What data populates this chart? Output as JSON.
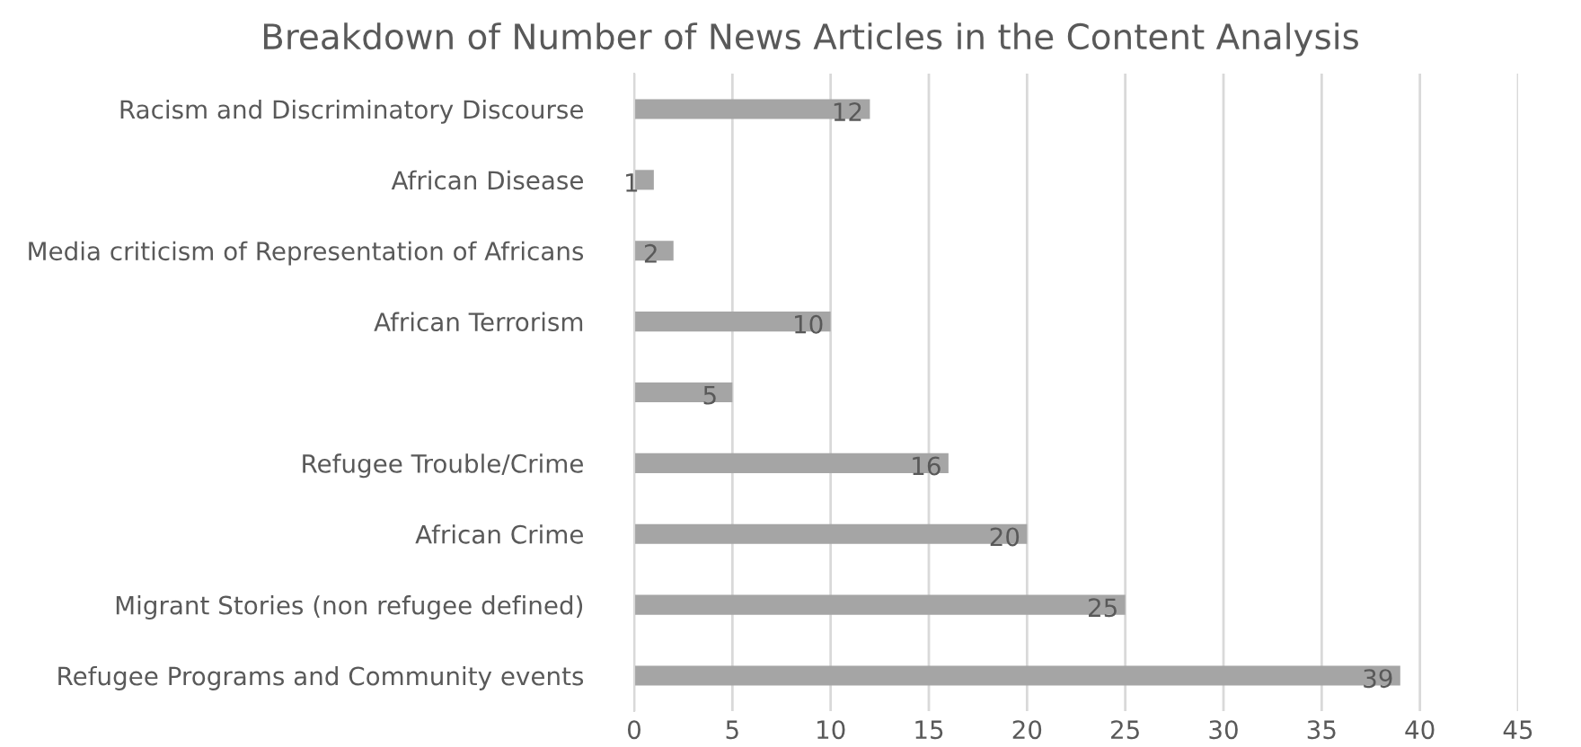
{
  "chart_data": {
    "type": "bar",
    "orientation": "horizontal",
    "title": "Breakdown of Number of News Articles in the Content Analysis",
    "categories": [
      "Racism and Discriminatory Discourse",
      "African Disease",
      "Media criticism of Representation of Africans",
      "African Terrorism",
      null,
      "Refugee Trouble/Crime",
      "African Crime",
      "Migrant Stories (non refugee defined)",
      "Refugee Programs and Community events"
    ],
    "values": [
      12,
      1,
      2,
      10,
      5,
      16,
      20,
      25,
      39
    ],
    "color": "#a5a5a5",
    "xlim": [
      0,
      45
    ],
    "xticks": [
      0,
      5,
      10,
      15,
      20,
      25,
      30,
      35,
      40,
      45
    ],
    "grid": "x",
    "data_labels": true
  }
}
